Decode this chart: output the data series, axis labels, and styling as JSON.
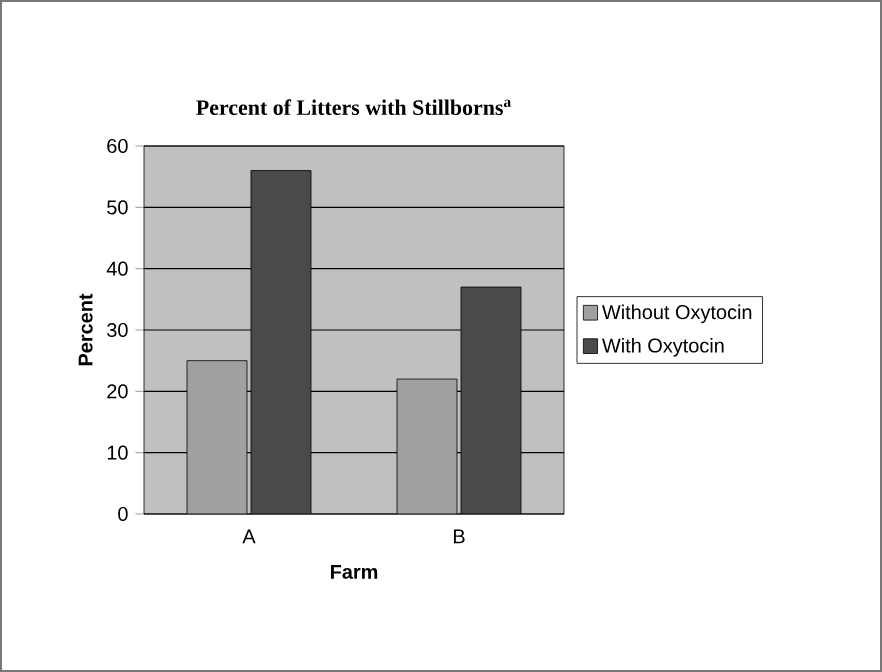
{
  "chart_data": {
    "type": "bar",
    "title": "Percent of Litters with Stillborns$^{a}$",
    "xlabel": "Farm",
    "ylabel": "Percent",
    "categories": [
      "A",
      "B"
    ],
    "series": [
      {
        "name": "Without Oxytocin",
        "color": "#a0a0a0",
        "values": [
          25,
          22
        ]
      },
      {
        "name": "With Oxytocin",
        "color": "#4a4a4a",
        "values": [
          56,
          37
        ]
      }
    ],
    "ylim": [
      0,
      60
    ],
    "yticks": [
      0,
      10,
      20,
      30,
      40,
      50,
      60
    ],
    "grid": "y",
    "legend": "right"
  }
}
